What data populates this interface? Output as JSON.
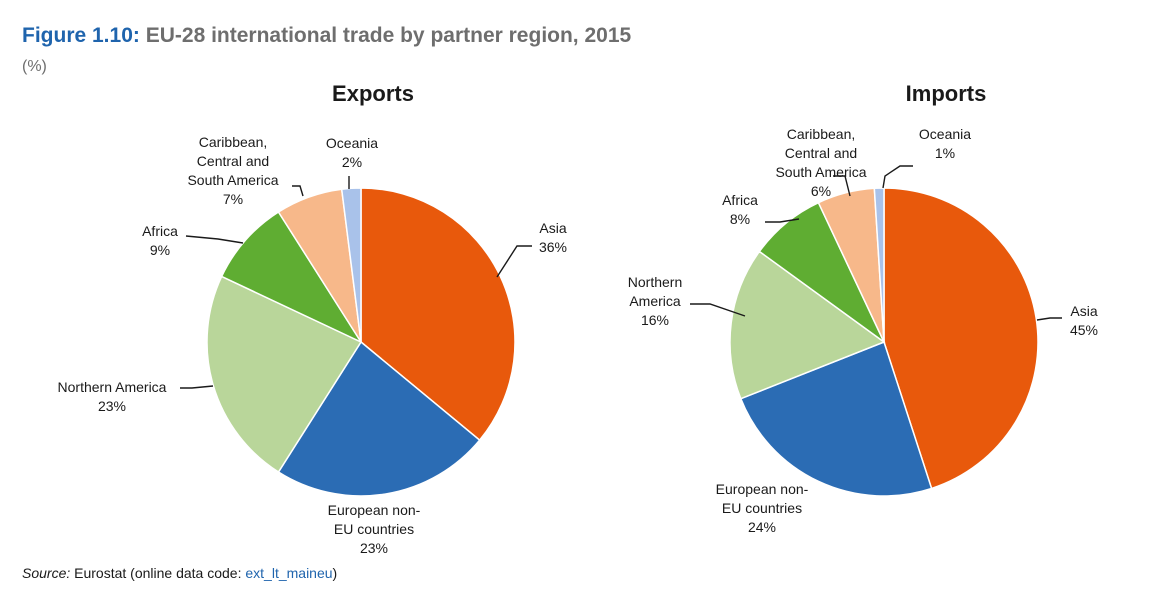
{
  "figure": {
    "number": "Figure 1.10:",
    "title": "EU-28 international trade by partner region, 2015",
    "unit": "(%)"
  },
  "source": {
    "label": "Source:",
    "text": "Eurostat (online data code: ",
    "code": "ext_lt_maineu",
    "close": ")"
  },
  "chart_data": [
    {
      "type": "pie",
      "title": "Exports",
      "slices": [
        {
          "label": [
            "Asia"
          ],
          "value": 36,
          "color": "#e8590c"
        },
        {
          "label": [
            "European non-",
            "EU countries"
          ],
          "value": 23,
          "color": "#2b6cb4"
        },
        {
          "label": [
            "Northern America"
          ],
          "value": 23,
          "color": "#b9d69a"
        },
        {
          "label": [
            "Africa"
          ],
          "value": 9,
          "color": "#5fad32"
        },
        {
          "label": [
            "Caribbean,",
            "Central and",
            "South America"
          ],
          "value": 7,
          "color": "#f7b88a"
        },
        {
          "label": [
            "Oceania"
          ],
          "value": 2,
          "color": "#a9c2ea"
        }
      ]
    },
    {
      "type": "pie",
      "title": "Imports",
      "slices": [
        {
          "label": [
            "Asia"
          ],
          "value": 45,
          "color": "#e8590c"
        },
        {
          "label": [
            "European non-",
            "EU countries"
          ],
          "value": 24,
          "color": "#2b6cb4"
        },
        {
          "label": [
            "Northern",
            "America"
          ],
          "value": 16,
          "color": "#b9d69a"
        },
        {
          "label": [
            "Africa"
          ],
          "value": 8,
          "color": "#5fad32"
        },
        {
          "label": [
            "Caribbean,",
            "Central and",
            "South America"
          ],
          "value": 6,
          "color": "#f7b88a"
        },
        {
          "label": [
            "Oceania"
          ],
          "value": 1,
          "color": "#a9c2ea"
        }
      ]
    }
  ]
}
